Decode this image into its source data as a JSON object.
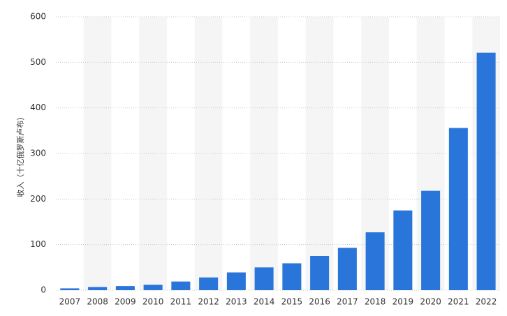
{
  "chart_data": {
    "type": "bar",
    "y_label": "收入（十亿俄罗斯卢布）",
    "categories": [
      "2007",
      "2008",
      "2009",
      "2010",
      "2011",
      "2012",
      "2013",
      "2014",
      "2015",
      "2016",
      "2017",
      "2018",
      "2019",
      "2020",
      "2021",
      "2022"
    ],
    "values": [
      4,
      7,
      9,
      12,
      19,
      28,
      39,
      50,
      59,
      75,
      93,
      127,
      175,
      218,
      356,
      521
    ],
    "color": "#2a75d9",
    "ylim": [
      0,
      600
    ],
    "yticks": [
      0,
      100,
      200,
      300,
      400,
      500,
      600
    ],
    "grid": true
  }
}
